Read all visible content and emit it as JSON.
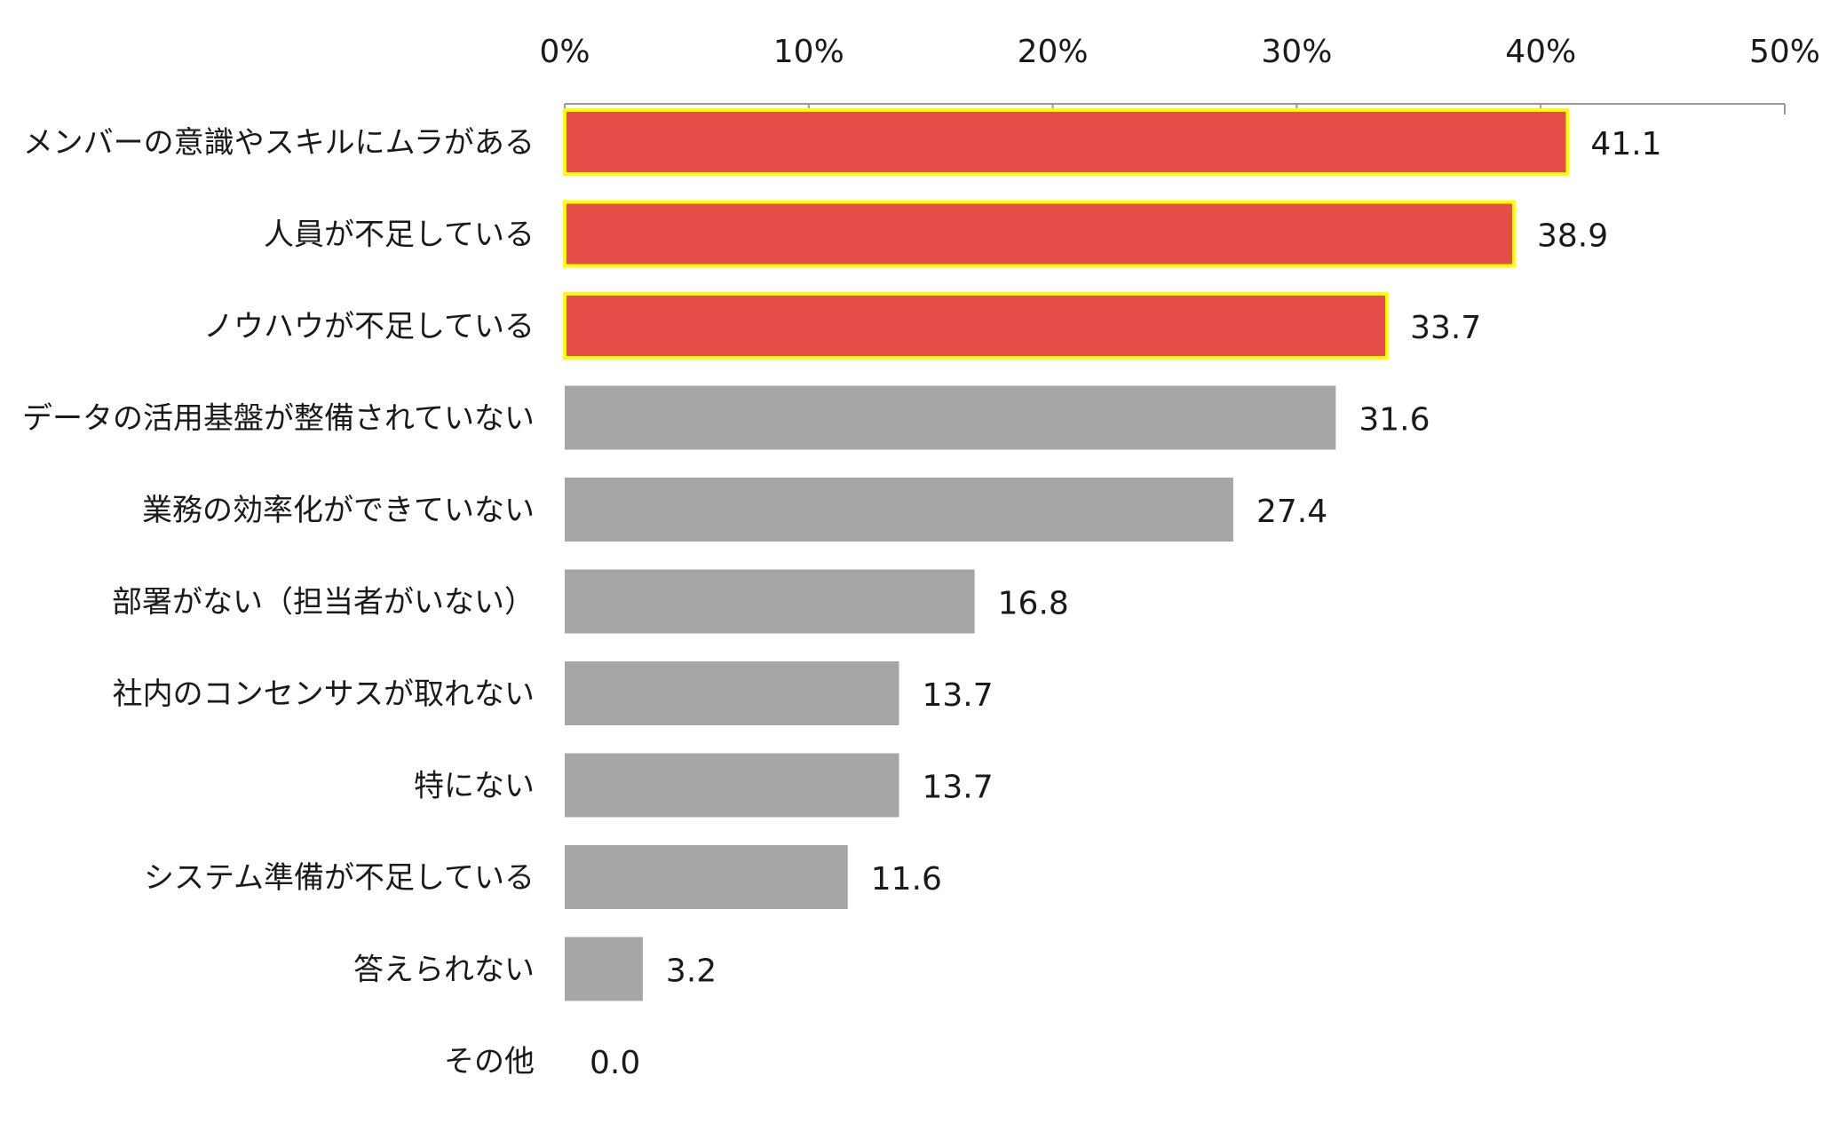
{
  "chart_data": {
    "type": "bar",
    "orientation": "horizontal",
    "categories": [
      "メンバーの意識やスキルにムラがある",
      "人員が不足している",
      "ノウハウが不足している",
      "データの活用基盤が整備されていない",
      "業務の効率化ができていない",
      "部署がない（担当者がいない）",
      "社内のコンセンサスが取れない",
      "特にない",
      "システム準備が不足している",
      "答えられない",
      "その他"
    ],
    "values": [
      41.1,
      38.9,
      33.7,
      31.6,
      27.4,
      16.8,
      13.7,
      13.7,
      11.6,
      3.2,
      0.0
    ],
    "value_labels": [
      "41.1",
      "38.9",
      "33.7",
      "31.6",
      "27.4",
      "16.8",
      "13.7",
      "13.7",
      "11.6",
      "3.2",
      "0.0"
    ],
    "highlighted": [
      true,
      true,
      true,
      false,
      false,
      false,
      false,
      false,
      false,
      false,
      false
    ],
    "xlim": [
      0,
      50
    ],
    "x_ticks": [
      0,
      10,
      20,
      30,
      40,
      50
    ],
    "x_tick_labels": [
      "0%",
      "10%",
      "20%",
      "30%",
      "40%",
      "50%"
    ],
    "axis_position": "top",
    "grid": false,
    "legend": "none",
    "title": "",
    "xlabel": "",
    "ylabel": "",
    "colors": {
      "highlight_fill": "#e54d49",
      "highlight_border": "#ffff00",
      "default_fill": "#a6a6a6",
      "axis": "#999999",
      "text": "#1a1a1a"
    }
  }
}
